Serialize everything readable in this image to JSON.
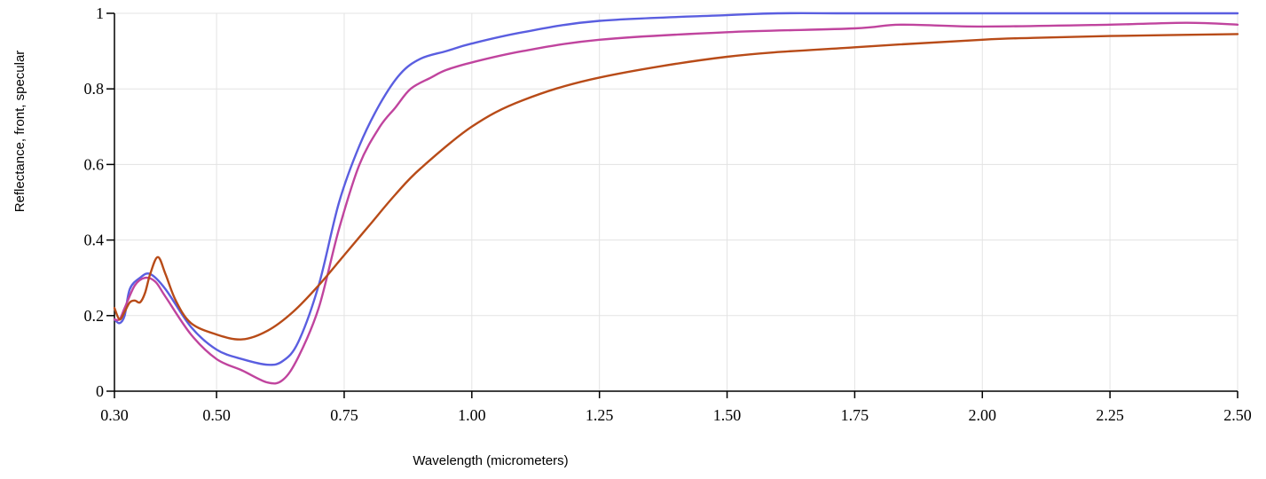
{
  "chart_data": {
    "type": "line",
    "title": "",
    "xlabel": "Wavelength (micrometers)",
    "ylabel": "Reflectance, front, specular",
    "xlim": [
      0.3,
      2.5
    ],
    "ylim": [
      0,
      1
    ],
    "grid": true,
    "x_ticks": [
      0.3,
      0.5,
      0.75,
      1.0,
      1.25,
      1.5,
      1.75,
      2.0,
      2.25,
      2.5
    ],
    "x_tick_labels": [
      "0.30",
      "0.50",
      "0.75",
      "1.00",
      "1.25",
      "1.50",
      "1.75",
      "2.00",
      "2.25",
      "2.50"
    ],
    "y_ticks": [
      0,
      0.2,
      0.4,
      0.6,
      0.8,
      1
    ],
    "y_tick_labels": [
      "0",
      "0.2",
      "0.4",
      "0.6",
      "0.8",
      "1"
    ],
    "series": [
      {
        "color": "#5a5ee0",
        "x": [
          0.3,
          0.31,
          0.32,
          0.33,
          0.35,
          0.37,
          0.4,
          0.45,
          0.5,
          0.55,
          0.6,
          0.63,
          0.66,
          0.7,
          0.74,
          0.78,
          0.82,
          0.86,
          0.9,
          0.95,
          1.0,
          1.1,
          1.25,
          1.5,
          1.6,
          1.75,
          2.0,
          2.25,
          2.5
        ],
        "y": [
          0.19,
          0.18,
          0.2,
          0.27,
          0.3,
          0.31,
          0.27,
          0.17,
          0.11,
          0.085,
          0.07,
          0.08,
          0.13,
          0.28,
          0.5,
          0.65,
          0.76,
          0.84,
          0.88,
          0.9,
          0.92,
          0.95,
          0.98,
          0.995,
          1.0,
          1.0,
          1.0,
          1.0,
          1.0
        ]
      },
      {
        "color": "#c0449e",
        "x": [
          0.3,
          0.31,
          0.32,
          0.34,
          0.36,
          0.38,
          0.4,
          0.45,
          0.5,
          0.55,
          0.6,
          0.63,
          0.66,
          0.7,
          0.74,
          0.78,
          0.82,
          0.85,
          0.88,
          0.92,
          0.95,
          1.0,
          1.1,
          1.25,
          1.5,
          1.75,
          1.84,
          2.0,
          2.25,
          2.4,
          2.5
        ],
        "y": [
          0.19,
          0.19,
          0.22,
          0.28,
          0.3,
          0.29,
          0.25,
          0.15,
          0.085,
          0.055,
          0.023,
          0.03,
          0.09,
          0.22,
          0.43,
          0.6,
          0.7,
          0.75,
          0.8,
          0.83,
          0.85,
          0.87,
          0.9,
          0.93,
          0.95,
          0.96,
          0.97,
          0.965,
          0.97,
          0.975,
          0.97
        ]
      },
      {
        "color": "#b84b18",
        "x": [
          0.3,
          0.31,
          0.32,
          0.33,
          0.34,
          0.35,
          0.36,
          0.37,
          0.385,
          0.4,
          0.42,
          0.45,
          0.5,
          0.55,
          0.6,
          0.65,
          0.7,
          0.75,
          0.8,
          0.85,
          0.9,
          1.0,
          1.1,
          1.25,
          1.5,
          1.75,
          2.0,
          2.1,
          2.25,
          2.5
        ],
        "y": [
          0.22,
          0.19,
          0.21,
          0.235,
          0.24,
          0.235,
          0.26,
          0.31,
          0.355,
          0.31,
          0.24,
          0.18,
          0.15,
          0.137,
          0.16,
          0.21,
          0.28,
          0.36,
          0.44,
          0.52,
          0.59,
          0.7,
          0.77,
          0.83,
          0.885,
          0.91,
          0.93,
          0.935,
          0.94,
          0.945
        ]
      }
    ]
  }
}
